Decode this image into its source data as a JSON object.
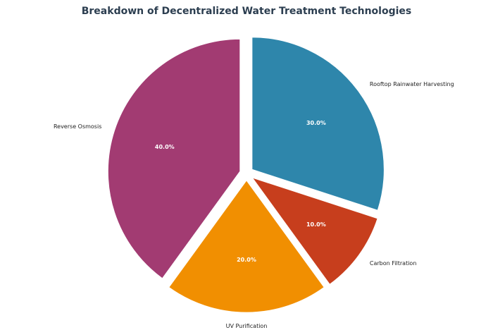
{
  "chart_data": {
    "type": "pie",
    "title": "Breakdown of Decentralized Water Treatment Technologies",
    "categories": [
      "Rooftop Rainwater Harvesting",
      "Carbon Filtration",
      "UV Purification",
      "Reverse Osmosis"
    ],
    "values": [
      30,
      10,
      20,
      40
    ],
    "percent_labels": [
      "30.0%",
      "10.0%",
      "20.0%",
      "40.0%"
    ],
    "colors": [
      "#2e86ab",
      "#c73e1d",
      "#f18f01",
      "#a23b72"
    ],
    "explode": [
      0.05,
      0.05,
      0.05,
      0.05
    ],
    "start_angle_deg": 90,
    "direction": "clockwise",
    "legend": "none"
  }
}
